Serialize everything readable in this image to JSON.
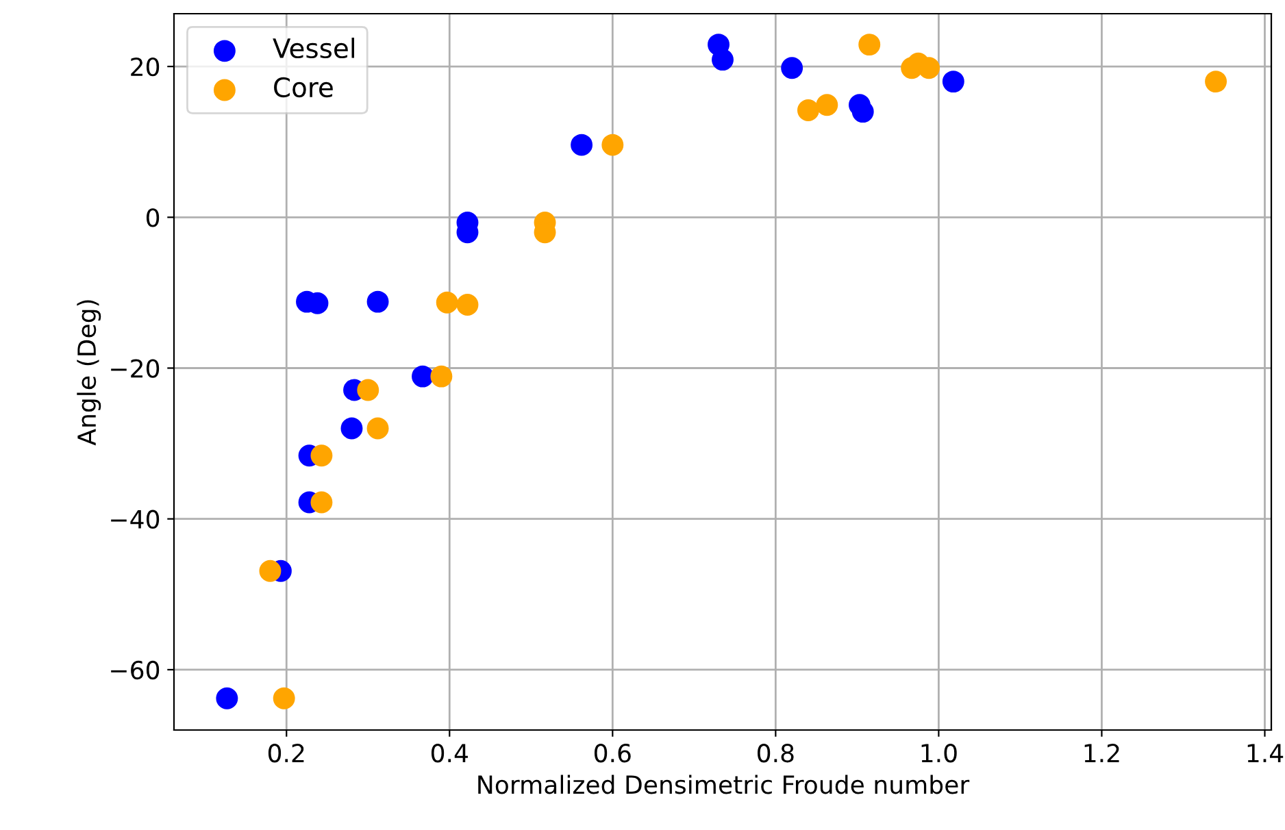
{
  "chart_data": {
    "type": "scatter",
    "xlabel": "Normalized Densimetric Froude number",
    "ylabel": "Angle (Deg)",
    "xlim": [
      0.062,
      1.408
    ],
    "xticks": [
      0.2,
      0.4,
      0.6,
      0.8,
      {
        "value": 1,
        "label": "1.0"
      },
      1.2,
      1.4
    ],
    "ylim": [
      -68,
      27
    ],
    "yticks": [
      -60,
      -40,
      -20,
      0,
      20
    ],
    "grid": true,
    "legend": "top left",
    "marker": "circle",
    "series": [
      {
        "name": "Vessel",
        "color": "#0000ff",
        "x": [
          0.73,
          0.735,
          0.82,
          0.903,
          0.907,
          1.018,
          0.562,
          0.422,
          0.422,
          0.225,
          0.238,
          0.312,
          0.367,
          0.283,
          0.28,
          0.228,
          0.228,
          0.193,
          0.127
        ],
        "values": [
          22.9,
          20.9,
          19.8,
          14.9,
          14.0,
          18.0,
          9.6,
          -0.7,
          -2.0,
          -11.2,
          -11.4,
          -11.2,
          -21.1,
          -22.9,
          -28,
          -31.6,
          -37.8,
          -46.9,
          -63.8
        ]
      },
      {
        "name": "Core",
        "color": "#ffa500",
        "x": [
          0.915,
          0.967,
          0.975,
          0.988,
          0.84,
          0.863,
          1.34,
          0.6,
          0.517,
          0.517,
          0.397,
          0.422,
          0.39,
          0.3,
          0.312,
          0.243,
          0.243,
          0.18,
          0.197
        ],
        "values": [
          22.9,
          19.8,
          20.4,
          19.8,
          14.2,
          14.9,
          18.0,
          9.6,
          -0.7,
          -2.0,
          -11.3,
          -11.6,
          -21.1,
          -22.9,
          -28,
          -31.6,
          -37.8,
          -46.9,
          -63.8
        ]
      }
    ]
  }
}
